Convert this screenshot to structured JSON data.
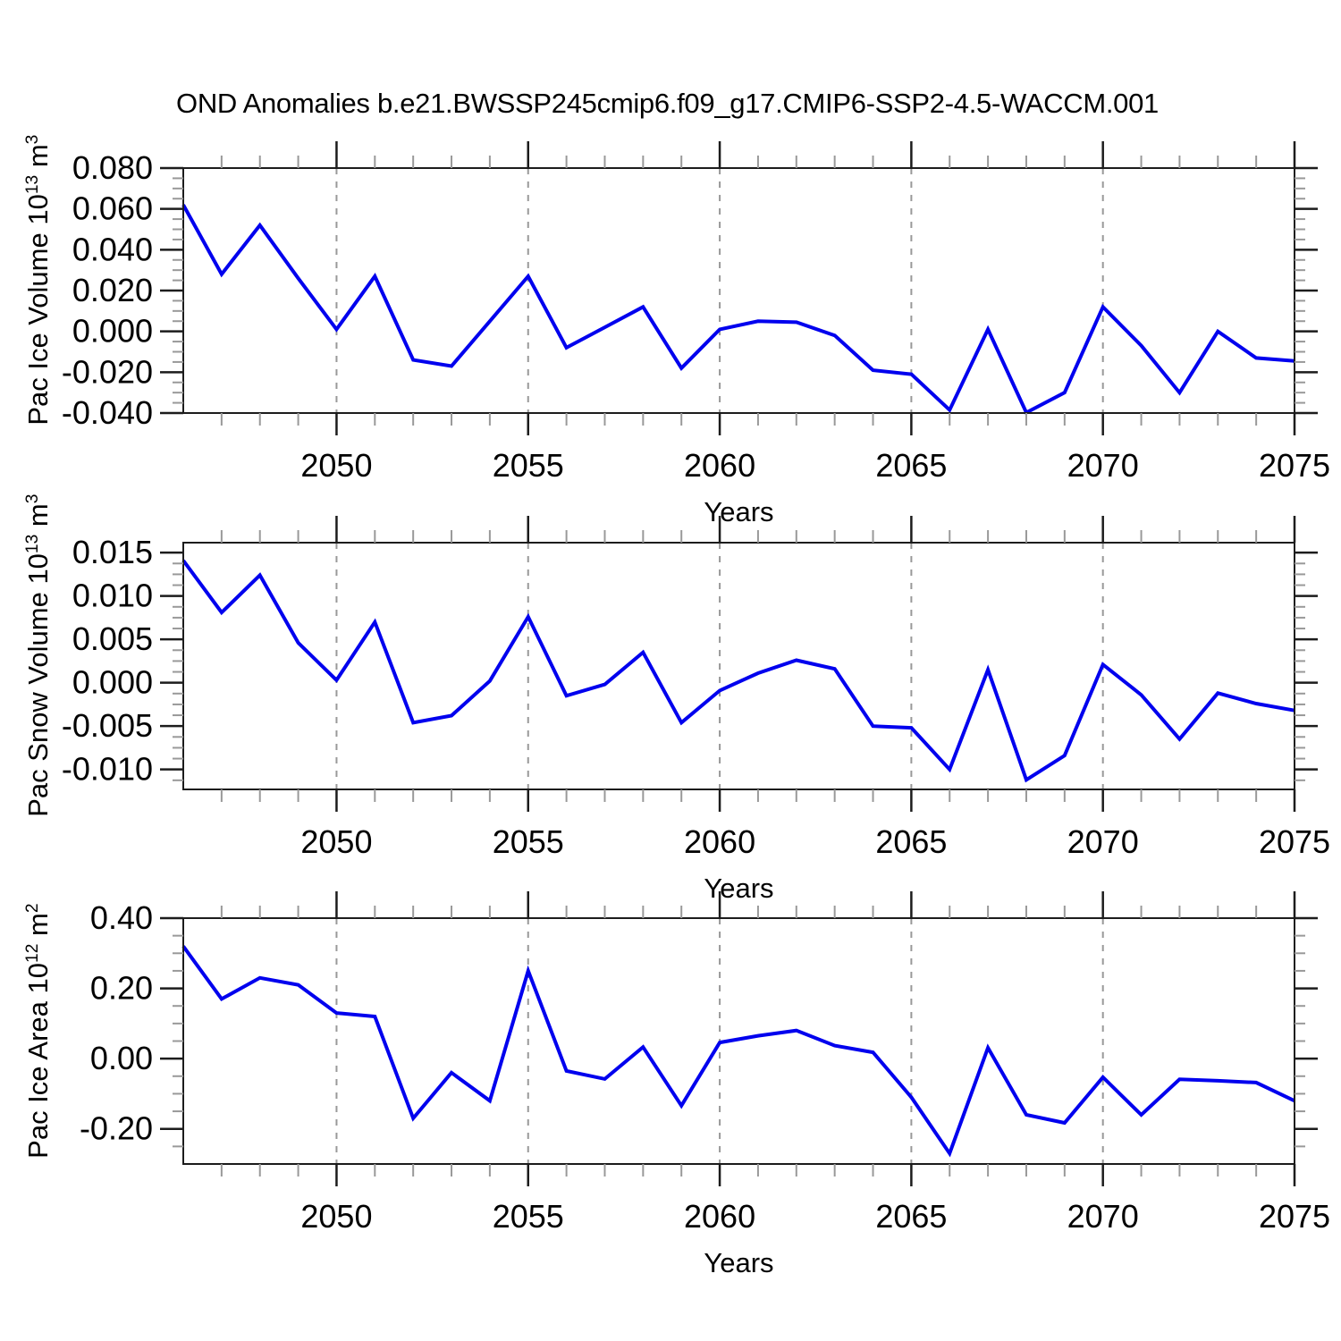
{
  "title": "OND Anomalies b.e21.BWSSP245cmip6.f09_g17.CMIP6-SSP2-4.5-WACCM.001",
  "colors": {
    "line": "#0000ee",
    "grid": "#999999",
    "axis": "#1c1c1c",
    "minor_tick": "#999999",
    "text": "#000000",
    "background": "#ffffff"
  },
  "x_axis": {
    "label": "Years",
    "range": [
      2046,
      2075
    ],
    "ticks": [
      2050,
      2055,
      2060,
      2065,
      2070,
      2075
    ],
    "grid_years": [
      2050,
      2055,
      2060,
      2065,
      2070
    ],
    "minor_step": 1
  },
  "chart_data": [
    {
      "type": "line",
      "title": "",
      "ylabel_prefix": "Pac Ice Volume 10",
      "ylabel_sup": "13",
      "ylabel_mid": " m",
      "ylabel_unit_sup": "3",
      "ylim": [
        -0.04,
        0.08
      ],
      "ytick_labels": [
        "0.080",
        "0.060",
        "0.040",
        "0.020",
        "0.000",
        "-0.020",
        "-0.040"
      ],
      "ytick_values": [
        0.08,
        0.06,
        0.04,
        0.02,
        0.0,
        -0.02,
        -0.04
      ],
      "yminor_step": 0.005,
      "xlabel": "Years",
      "x": [
        2046,
        2047,
        2048,
        2049,
        2050,
        2051,
        2052,
        2053,
        2054,
        2055,
        2056,
        2057,
        2058,
        2059,
        2060,
        2061,
        2062,
        2063,
        2064,
        2065,
        2066,
        2067,
        2068,
        2069,
        2070,
        2071,
        2072,
        2073,
        2074,
        2075
      ],
      "values": [
        0.062,
        0.028,
        0.052,
        0.026,
        0.001,
        0.027,
        -0.014,
        -0.017,
        0.005,
        0.027,
        -0.008,
        0.002,
        0.012,
        -0.018,
        0.001,
        0.005,
        0.0045,
        -0.002,
        -0.019,
        -0.021,
        -0.0385,
        0.001,
        -0.0398,
        -0.03,
        0.012,
        -0.007,
        -0.03,
        0.0,
        -0.013,
        -0.0145
      ]
    },
    {
      "type": "line",
      "title": "",
      "ylabel_prefix": "Pac Snow Volume 10",
      "ylabel_sup": "13",
      "ylabel_mid": " m",
      "ylabel_unit_sup": "3",
      "ylim": [
        -0.0123,
        0.01615
      ],
      "ytick_labels": [
        "0.015",
        "0.010",
        "0.005",
        "0.000",
        "-0.005",
        "-0.010"
      ],
      "ytick_values": [
        0.015,
        0.01,
        0.005,
        0.0,
        -0.005,
        -0.01
      ],
      "yminor_step": 0.00125,
      "xlabel": "Years",
      "x": [
        2046,
        2047,
        2048,
        2049,
        2050,
        2051,
        2052,
        2053,
        2054,
        2055,
        2056,
        2057,
        2058,
        2059,
        2060,
        2061,
        2062,
        2063,
        2064,
        2065,
        2066,
        2067,
        2068,
        2069,
        2070,
        2071,
        2072,
        2073,
        2074,
        2075
      ],
      "values": [
        0.0141,
        0.0081,
        0.0124,
        0.0046,
        0.0003,
        0.007,
        -0.0046,
        -0.0038,
        0.0002,
        0.0076,
        -0.0015,
        -0.0002,
        0.0035,
        -0.0046,
        -0.0009,
        0.0011,
        0.0026,
        0.0016,
        -0.005,
        -0.0052,
        -0.01,
        0.0015,
        -0.0112,
        -0.0084,
        0.0021,
        -0.0014,
        -0.0065,
        -0.0012,
        -0.0024,
        -0.0032
      ]
    },
    {
      "type": "line",
      "title": "",
      "ylabel_prefix": "Pac Ice Area 10",
      "ylabel_sup": "12",
      "ylabel_mid": " m",
      "ylabel_unit_sup": "2",
      "ylim": [
        -0.3,
        0.4
      ],
      "ytick_labels": [
        "0.40",
        "0.20",
        "0.00",
        "-0.20"
      ],
      "ytick_values": [
        0.4,
        0.2,
        0.0,
        -0.2
      ],
      "yminor_step": 0.05,
      "xlabel": "Years",
      "x": [
        2046,
        2047,
        2048,
        2049,
        2050,
        2051,
        2052,
        2053,
        2054,
        2055,
        2056,
        2057,
        2058,
        2059,
        2060,
        2061,
        2062,
        2063,
        2064,
        2065,
        2066,
        2067,
        2068,
        2069,
        2070,
        2071,
        2072,
        2073,
        2074,
        2075
      ],
      "values": [
        0.32,
        0.17,
        0.23,
        0.21,
        0.13,
        0.12,
        -0.17,
        -0.04,
        -0.12,
        0.25,
        -0.035,
        -0.058,
        0.033,
        -0.134,
        0.046,
        0.065,
        0.08,
        0.037,
        0.018,
        -0.11,
        -0.27,
        0.031,
        -0.16,
        -0.183,
        -0.053,
        -0.16,
        -0.059,
        -0.063,
        -0.068,
        -0.12
      ]
    }
  ]
}
